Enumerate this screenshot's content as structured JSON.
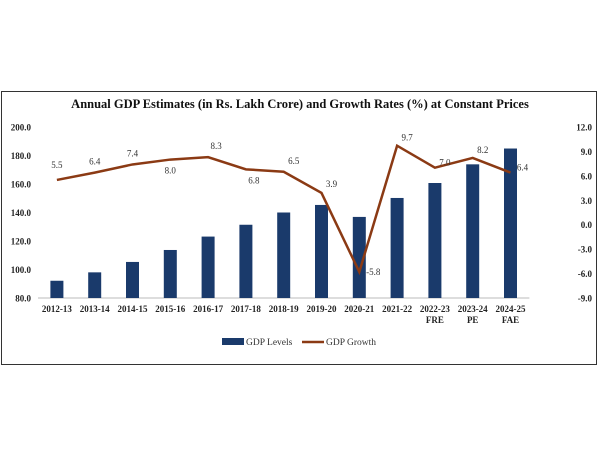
{
  "chart_data": {
    "type": "bar+line",
    "title": "Annual GDP Estimates (in Rs. Lakh Crore) and Growth Rates (%) at Constant Prices",
    "categories": [
      [
        "2012-13"
      ],
      [
        "2013-14"
      ],
      [
        "2014-15"
      ],
      [
        "2015-16"
      ],
      [
        "2016-17"
      ],
      [
        "2017-18"
      ],
      [
        "2018-19"
      ],
      [
        "2019-20"
      ],
      [
        "2020-21"
      ],
      [
        "2021-22"
      ],
      [
        "2022-23",
        "FRE"
      ],
      [
        "2023-24",
        "PE"
      ],
      [
        "2024-25",
        "FAE"
      ]
    ],
    "series": [
      {
        "name": "GDP Levels",
        "type": "bar",
        "axis": "left",
        "color": "#1a3a6b",
        "values": [
          92.1,
          98.0,
          105.3,
          113.7,
          123.1,
          131.4,
          140.0,
          145.3,
          136.9,
          150.2,
          160.7,
          173.8,
          184.9
        ]
      },
      {
        "name": "GDP Growth",
        "type": "line",
        "axis": "right",
        "color": "#8b3a14",
        "values": [
          5.5,
          6.4,
          7.4,
          8.0,
          8.3,
          6.8,
          6.5,
          3.9,
          -5.8,
          9.7,
          7.0,
          8.2,
          6.4
        ],
        "labels": [
          "5.5",
          "6.4",
          "7.4",
          "8.0",
          "8.3",
          "6.8",
          "6.5",
          "3.9",
          "-5.8",
          "9.7",
          "7.0",
          "8.2",
          "6.4"
        ]
      }
    ],
    "y_left": {
      "range": [
        80,
        200
      ],
      "ticks": [
        "80.0",
        "100.0",
        "120.0",
        "140.0",
        "160.0",
        "180.0",
        "200.0"
      ]
    },
    "y_right": {
      "range": [
        -9,
        12
      ],
      "ticks": [
        "-9.0",
        "-6.0",
        "-3.0",
        "0.0",
        "3.0",
        "6.0",
        "9.0",
        "12.0"
      ]
    },
    "grid": false,
    "legend": "bottom"
  }
}
